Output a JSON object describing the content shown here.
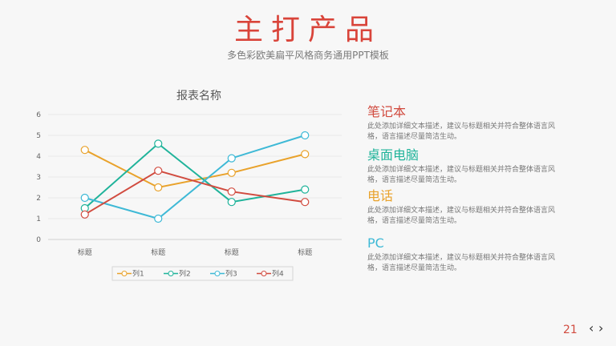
{
  "header": {
    "title": "主打产品",
    "subtitle": "多色彩欧美扁平风格商务通用PPT模板"
  },
  "colors": {
    "title": "#d9443a",
    "series": [
      "#e9a22b",
      "#1fb39a",
      "#3eb9d6",
      "#d14b3f"
    ],
    "feature_titles": [
      "#d14b3f",
      "#1fb39a",
      "#e9a22b",
      "#3eb9d6"
    ],
    "page_number": "#d14b3f"
  },
  "features": [
    {
      "title": "笔记本",
      "desc": "此处添加详细文本描述，建议与标题相关并符合整体语言风格，语言描述尽量简洁生动。"
    },
    {
      "title": "桌面电脑",
      "desc": "此处添加详细文本描述，建议与标题相关并符合整体语言风格，语言描述尽量简洁生动。"
    },
    {
      "title": "电话",
      "desc": "此处添加详细文本描述，建议与标题相关并符合整体语言风格，语言描述尽量简洁生动。"
    },
    {
      "title": "PC",
      "desc": "此处添加详细文本描述，建议与标题相关并符合整体语言风格，语言描述尽量简洁生动。"
    }
  ],
  "footer": {
    "page_number": "21",
    "prev_icon": "chevron-left-icon",
    "next_icon": "chevron-right-icon"
  },
  "chart_data": {
    "type": "line",
    "title": "报表名称",
    "categories": [
      "标题",
      "标题",
      "标题",
      "标题"
    ],
    "series": [
      {
        "name": "列1",
        "values": [
          4.3,
          2.5,
          3.2,
          4.1
        ]
      },
      {
        "name": "列2",
        "values": [
          1.5,
          4.6,
          1.8,
          2.4
        ]
      },
      {
        "name": "列3",
        "values": [
          2.0,
          1.0,
          3.9,
          5.0
        ]
      },
      {
        "name": "列4",
        "values": [
          1.2,
          3.3,
          2.3,
          1.8
        ]
      }
    ],
    "ylim": [
      0,
      6
    ],
    "yticks": [
      0,
      1,
      2,
      3,
      4,
      5,
      6
    ],
    "grid": true,
    "legend_position": "bottom",
    "markers": "hollow-circle"
  }
}
